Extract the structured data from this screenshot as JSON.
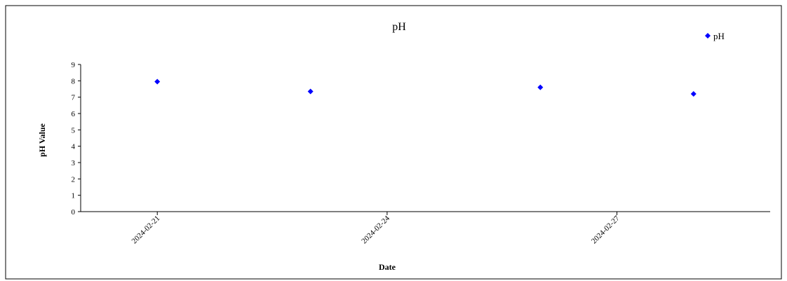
{
  "chart_data": {
    "type": "scatter",
    "title": "pH",
    "xlabel": "Date",
    "ylabel": "pH Value",
    "x_ticks": [
      "2024-02-21",
      "2024-02-24",
      "2024-02-27"
    ],
    "xlim": [
      "2024-02-20",
      "2024-02-29"
    ],
    "ylim": [
      0,
      9
    ],
    "y_ticks": [
      0,
      1,
      2,
      3,
      4,
      5,
      6,
      7,
      8,
      9
    ],
    "grid": false,
    "legend_position": "top-right",
    "series": [
      {
        "name": "pH",
        "color": "#0000ff",
        "marker": "diamond",
        "points": [
          {
            "x": "2024-02-21",
            "y": 7.95
          },
          {
            "x": "2024-02-23",
            "y": 7.35
          },
          {
            "x": "2024-02-26",
            "y": 7.6
          },
          {
            "x": "2024-02-28",
            "y": 7.2
          }
        ]
      }
    ]
  }
}
